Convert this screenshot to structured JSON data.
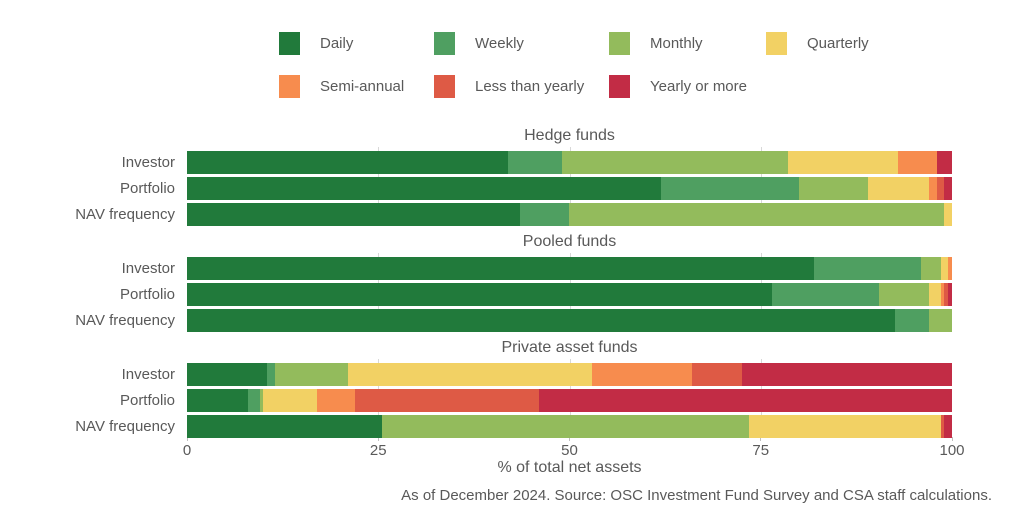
{
  "chart_data": {
    "type": "bar",
    "stacked": true,
    "orientation": "horizontal",
    "categories": [
      "Daily",
      "Weekly",
      "Monthly",
      "Quarterly",
      "Semi-annual",
      "Less than yearly",
      "Yearly or more"
    ],
    "colors": [
      "#217a3b",
      "#4f9f61",
      "#93bb5c",
      "#f2d164",
      "#f78c4e",
      "#de5a45",
      "#c22c45"
    ],
    "legend_rows": [
      [
        0,
        1,
        2,
        3
      ],
      [
        4,
        5,
        6
      ]
    ],
    "panels": [
      {
        "title": "Hedge funds",
        "rows": [
          {
            "label": "Investor",
            "values": [
              42,
              7,
              29.5,
              14.5,
              5,
              0,
              2
            ]
          },
          {
            "label": "Portfolio",
            "values": [
              62,
              18,
              9,
              8,
              1,
              1,
              1
            ]
          },
          {
            "label": "NAV frequency",
            "values": [
              43.5,
              6.5,
              49,
              1,
              0,
              0,
              0
            ]
          }
        ]
      },
      {
        "title": "Pooled funds",
        "rows": [
          {
            "label": "Investor",
            "values": [
              82,
              14,
              2.5,
              1,
              0.5,
              0,
              0
            ]
          },
          {
            "label": "Portfolio",
            "values": [
              76.5,
              14,
              6.5,
              1.5,
              0.5,
              0.5,
              0.5
            ]
          },
          {
            "label": "NAV frequency",
            "values": [
              92.5,
              4.5,
              3,
              0,
              0,
              0,
              0
            ]
          }
        ]
      },
      {
        "title": "Private asset funds",
        "rows": [
          {
            "label": "Investor",
            "values": [
              10.5,
              1,
              9.5,
              32,
              13,
              6.5,
              27.5
            ]
          },
          {
            "label": "Portfolio",
            "values": [
              8,
              1.5,
              0.5,
              7,
              5,
              24,
              54
            ]
          },
          {
            "label": "NAV frequency",
            "values": [
              25.5,
              0,
              48,
              25,
              0,
              0.5,
              1
            ]
          }
        ]
      }
    ],
    "xlabel": "% of total net assets",
    "xlim": [
      0,
      100
    ],
    "x_ticks": [
      0,
      25,
      50,
      75,
      100
    ],
    "gridlines": [
      25,
      50,
      75
    ],
    "grid_color": "#d8d8d8",
    "text_color": "#595959",
    "footnote": "As of December 2024. Source: OSC Investment Fund Survey and CSA staff calculations."
  }
}
